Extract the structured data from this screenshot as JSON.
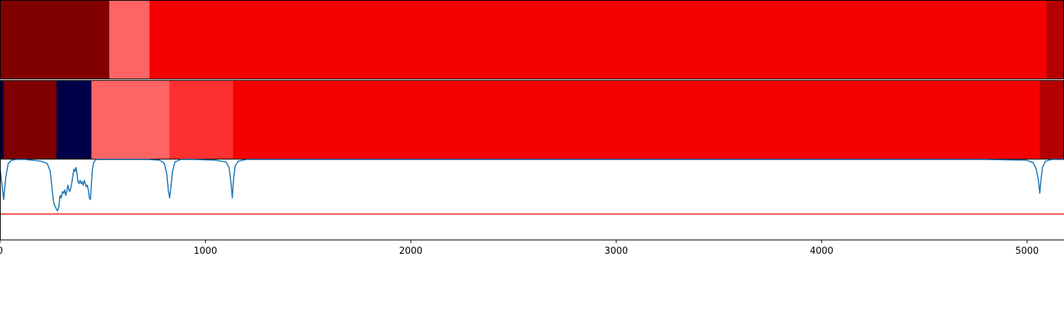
{
  "chart_data": {
    "type": "heatmap",
    "x_range": [
      0,
      5180
    ],
    "x_ticks": [
      0,
      1000,
      2000,
      3000,
      4000,
      5000
    ],
    "x_tick_labels": [
      "0",
      "1000",
      "2000",
      "3000",
      "4000",
      "5000"
    ],
    "grid": false,
    "colors": {
      "dark_red": "#800000",
      "light_red": "#ff6464",
      "red": "#f50000",
      "medium_red": "#ff3030",
      "crimson": "#b40000",
      "navy": "#00004a",
      "line": "#1f77b4",
      "threshold": "#e81c1c"
    },
    "tracks": [
      {
        "segments": [
          {
            "start": 0,
            "end": 532,
            "color": "dark_red"
          },
          {
            "start": 532,
            "end": 728,
            "color": "light_red"
          },
          {
            "start": 728,
            "end": 5095,
            "color": "red"
          },
          {
            "start": 5095,
            "end": 5180,
            "color": "crimson"
          }
        ]
      },
      {
        "segments": [
          {
            "start": 0,
            "end": 18,
            "color": "navy"
          },
          {
            "start": 18,
            "end": 275,
            "color": "dark_red"
          },
          {
            "start": 275,
            "end": 445,
            "color": "navy"
          },
          {
            "start": 445,
            "end": 825,
            "color": "light_red"
          },
          {
            "start": 825,
            "end": 1135,
            "color": "medium_red"
          },
          {
            "start": 1135,
            "end": 5062,
            "color": "red"
          },
          {
            "start": 5062,
            "end": 5180,
            "color": "crimson"
          }
        ]
      }
    ],
    "profile": {
      "y_range": [
        0,
        1
      ],
      "threshold": 0.32,
      "x": [
        0,
        8,
        18,
        28,
        40,
        55,
        80,
        120,
        160,
        200,
        230,
        245,
        255,
        262,
        268,
        275,
        280,
        286,
        292,
        298,
        305,
        310,
        315,
        320,
        325,
        330,
        335,
        340,
        345,
        350,
        355,
        360,
        365,
        370,
        375,
        380,
        385,
        390,
        395,
        400,
        405,
        410,
        415,
        420,
        425,
        430,
        435,
        440,
        445,
        450,
        455,
        460,
        470,
        480,
        500,
        560,
        640,
        720,
        780,
        800,
        812,
        820,
        826,
        832,
        840,
        852,
        880,
        950,
        1050,
        1100,
        1115,
        1125,
        1131,
        1137,
        1145,
        1160,
        1200,
        1400,
        2000,
        3000,
        4000,
        4800,
        5000,
        5030,
        5045,
        5055,
        5062,
        5068,
        5075,
        5090,
        5120,
        5180
      ],
      "y": [
        0.9,
        0.72,
        0.5,
        0.78,
        0.95,
        0.99,
        1.0,
        1.0,
        0.99,
        0.98,
        0.95,
        0.85,
        0.6,
        0.45,
        0.42,
        0.38,
        0.36,
        0.4,
        0.55,
        0.52,
        0.6,
        0.58,
        0.62,
        0.55,
        0.6,
        0.68,
        0.63,
        0.6,
        0.65,
        0.72,
        0.8,
        0.88,
        0.85,
        0.9,
        0.82,
        0.72,
        0.7,
        0.74,
        0.7,
        0.72,
        0.68,
        0.74,
        0.7,
        0.66,
        0.68,
        0.62,
        0.52,
        0.5,
        0.7,
        0.88,
        0.95,
        0.98,
        1.0,
        1.0,
        1.0,
        1.0,
        1.0,
        1.0,
        0.99,
        0.95,
        0.82,
        0.6,
        0.52,
        0.65,
        0.85,
        0.97,
        1.0,
        1.0,
        0.99,
        0.97,
        0.9,
        0.7,
        0.52,
        0.75,
        0.92,
        0.98,
        1.0,
        1.0,
        1.0,
        1.0,
        1.0,
        1.0,
        0.99,
        0.96,
        0.88,
        0.75,
        0.58,
        0.75,
        0.9,
        0.98,
        1.0,
        1.0
      ]
    }
  }
}
